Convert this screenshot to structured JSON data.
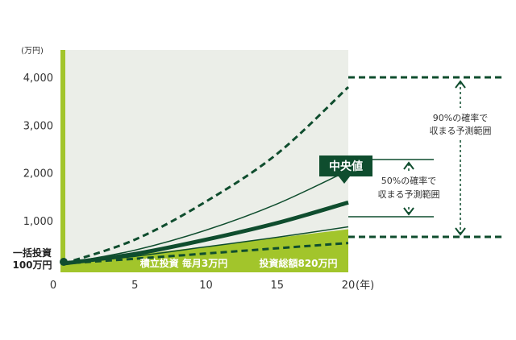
{
  "chart_data": {
    "type": "line",
    "ylabel": "(万円)",
    "xlabel": "(年)",
    "xlim": [
      0,
      20
    ],
    "ylim": [
      0,
      4500
    ],
    "x_ticks": [
      "0",
      "5",
      "10",
      "15",
      "20"
    ],
    "y_ticks": [
      "1,000",
      "2,000",
      "3,000",
      "4,000"
    ],
    "x": [
      0,
      5,
      10,
      15,
      20
    ],
    "series": [
      {
        "name": "中央値",
        "style": "bold",
        "values": [
          100,
          300,
          600,
          950,
          1380
        ]
      },
      {
        "style": "thin",
        "values": [
          100,
          380,
          800,
          1350,
          2050
        ]
      },
      {
        "style": "thin",
        "values": [
          100,
          250,
          450,
          650,
          870
        ]
      },
      {
        "style": "dashed",
        "values": [
          100,
          600,
          1400,
          2400,
          3800
        ]
      },
      {
        "style": "dashed",
        "values": [
          100,
          200,
          310,
          420,
          530
        ]
      }
    ],
    "contribution": {
      "x": [
        0,
        20
      ],
      "values": [
        100,
        820
      ]
    },
    "colors": {
      "dark_green": "#0f4d2e",
      "light_green": "#a2c52b",
      "plot_bg": "#ebeee8"
    }
  },
  "labels": {
    "initial_line1": "一括投資",
    "initial_line2": "100万円",
    "monthly": "積立投資 毎月3万円",
    "total": "投資総額820万円",
    "median": "中央値",
    "range90_line1": "90%の確率で",
    "range90_line2": "収まる予測範囲",
    "range50_line1": "50%の確率で",
    "range50_line2": "収まる予測範囲"
  }
}
